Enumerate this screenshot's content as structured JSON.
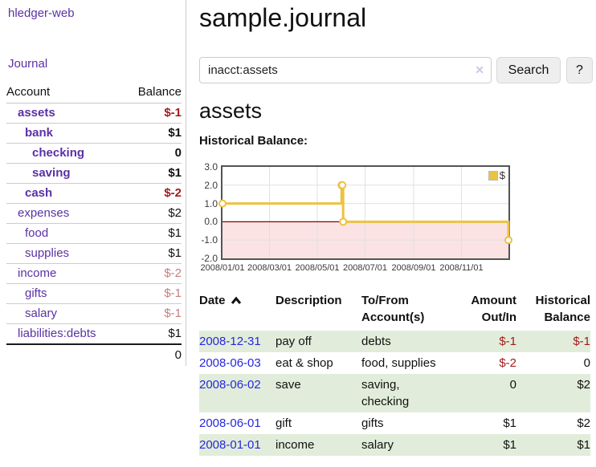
{
  "sidebar": {
    "brand": "hledger-web",
    "journal_link": "Journal",
    "accounts": {
      "col_account": "Account",
      "col_balance": "Balance",
      "rows": [
        {
          "name": "assets",
          "indent": 0,
          "bold": true,
          "balance": "$-1",
          "neg": "strong"
        },
        {
          "name": "bank",
          "indent": 1,
          "bold": true,
          "balance": "$1",
          "neg": "none"
        },
        {
          "name": "checking",
          "indent": 2,
          "bold": true,
          "balance": "0",
          "neg": "none"
        },
        {
          "name": "saving",
          "indent": 2,
          "bold": true,
          "balance": "$1",
          "neg": "none"
        },
        {
          "name": "cash",
          "indent": 1,
          "bold": true,
          "balance": "$-2",
          "neg": "strong"
        },
        {
          "name": "expenses",
          "indent": 0,
          "bold": false,
          "balance": "$2",
          "neg": "none"
        },
        {
          "name": "food",
          "indent": 1,
          "bold": false,
          "balance": "$1",
          "neg": "none"
        },
        {
          "name": "supplies",
          "indent": 1,
          "bold": false,
          "balance": "$1",
          "neg": "none"
        },
        {
          "name": "income",
          "indent": 0,
          "bold": false,
          "balance": "$-2",
          "neg": "soft"
        },
        {
          "name": "gifts",
          "indent": 1,
          "bold": false,
          "balance": "$-1",
          "neg": "soft"
        },
        {
          "name": "salary",
          "indent": 1,
          "bold": false,
          "balance": "$-1",
          "neg": "soft",
          "blue": true
        },
        {
          "name": "liabilities:debts",
          "indent": 0,
          "bold": false,
          "balance": "$1",
          "neg": "none"
        }
      ],
      "total": "0"
    }
  },
  "main": {
    "title": "sample.journal",
    "search": {
      "value": "inacct:assets",
      "clear": "✕",
      "search_button": "Search",
      "help_button": "?"
    },
    "heading": "assets",
    "chart_title": "Historical Balance:"
  },
  "chart_data": {
    "type": "line",
    "style": "step-after",
    "title": "Historical Balance",
    "x_min": "2008-01-01",
    "x_max": "2008-12-31",
    "ylim": [
      -2,
      3
    ],
    "grid": true,
    "legend_position": "top-right",
    "legend": [
      {
        "label": "$",
        "color": "#EDC240"
      }
    ],
    "y_ticks": [
      {
        "v": 3,
        "label": "3.0"
      },
      {
        "v": 2,
        "label": "2.0"
      },
      {
        "v": 1,
        "label": "1.0"
      },
      {
        "v": 0,
        "label": "0.0"
      },
      {
        "v": -1,
        "label": "-1.0"
      },
      {
        "v": -2,
        "label": "-2.0"
      }
    ],
    "x_ticks": [
      {
        "date": "2008-01-01",
        "label": "2008/01/01"
      },
      {
        "date": "2008-03-01",
        "label": "2008/03/01"
      },
      {
        "date": "2008-05-01",
        "label": "2008/05/01"
      },
      {
        "date": "2008-07-01",
        "label": "2008/07/01"
      },
      {
        "date": "2008-09-01",
        "label": "2008/09/01"
      },
      {
        "date": "2008-11-01",
        "label": "2008/11/01"
      }
    ],
    "series": [
      {
        "name": "$",
        "color": "#EDC240",
        "points": [
          [
            "2008-01-01",
            1
          ],
          [
            "2008-06-01",
            2
          ],
          [
            "2008-06-02",
            2
          ],
          [
            "2008-06-03",
            0
          ],
          [
            "2008-12-31",
            -1
          ]
        ]
      }
    ],
    "negative_region_color": "#fbe3e3",
    "zero_line_color": "#8b0000",
    "grid_color": "#e3dfdf",
    "border_color": "#545454"
  },
  "register": {
    "headers": [
      "Date",
      "Description",
      "To/From Account(s)",
      "Amount Out/In",
      "Historical Balance"
    ],
    "sort_column": "Date",
    "sort_direction": "ascending",
    "rows": [
      {
        "date": "2008-12-31",
        "description": "pay off",
        "accounts": "debts",
        "amount": "$-1",
        "amount_negative": true,
        "balance": "$-1",
        "balance_negative": true
      },
      {
        "date": "2008-06-03",
        "description": "eat & shop",
        "accounts": "food, supplies",
        "amount": "$-2",
        "amount_negative": true,
        "balance": "0",
        "balance_negative": false
      },
      {
        "date": "2008-06-02",
        "description": "save",
        "accounts": "saving, checking",
        "amount": "0",
        "amount_negative": false,
        "balance": "$2",
        "balance_negative": false
      },
      {
        "date": "2008-06-01",
        "description": "gift",
        "accounts": "gifts",
        "amount": "$1",
        "amount_negative": false,
        "balance": "$2",
        "balance_negative": false
      },
      {
        "date": "2008-01-01",
        "description": "income",
        "accounts": "salary",
        "amount": "$1",
        "amount_negative": false,
        "balance": "$1",
        "balance_negative": false
      }
    ]
  },
  "colors": {
    "link_purple": "#5a31a5",
    "link_blue": "#2727de",
    "negative_strong": "#a41a1a",
    "negative_soft": "#c47e7e",
    "row_stripe_green": "#e1edda",
    "series_yellow": "#EDC240",
    "negative_region_pink": "#fbe3e3",
    "zero_line_dark_red": "#8b0000"
  }
}
